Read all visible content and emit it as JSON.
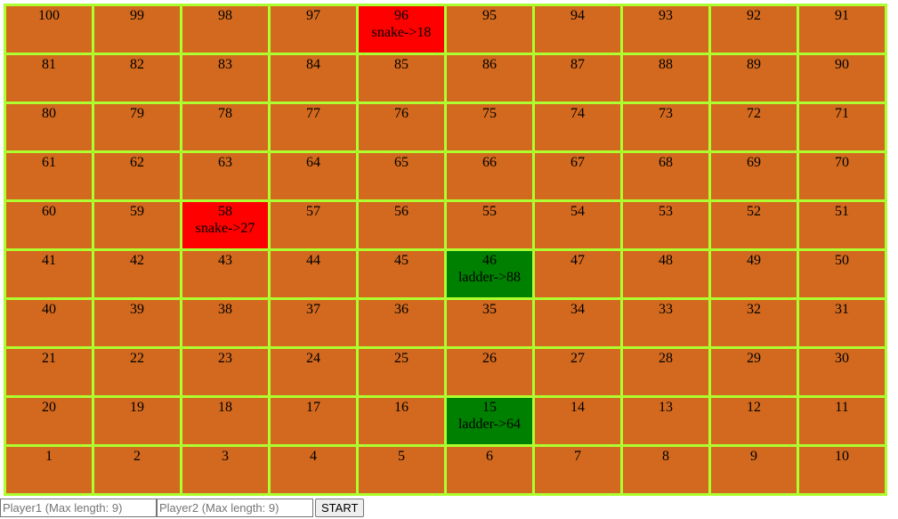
{
  "board": {
    "rows": [
      [
        100,
        99,
        98,
        97,
        96,
        95,
        94,
        93,
        92,
        91
      ],
      [
        81,
        82,
        83,
        84,
        85,
        86,
        87,
        88,
        89,
        90
      ],
      [
        80,
        79,
        78,
        77,
        76,
        75,
        74,
        73,
        72,
        71
      ],
      [
        61,
        62,
        63,
        64,
        65,
        66,
        67,
        68,
        69,
        70
      ],
      [
        60,
        59,
        58,
        57,
        56,
        55,
        54,
        53,
        52,
        51
      ],
      [
        41,
        42,
        43,
        44,
        45,
        46,
        47,
        48,
        49,
        50
      ],
      [
        40,
        39,
        38,
        37,
        36,
        35,
        34,
        33,
        32,
        31
      ],
      [
        21,
        22,
        23,
        24,
        25,
        26,
        27,
        28,
        29,
        30
      ],
      [
        20,
        19,
        18,
        17,
        16,
        15,
        14,
        13,
        12,
        11
      ],
      [
        1,
        2,
        3,
        4,
        5,
        6,
        7,
        8,
        9,
        10
      ]
    ],
    "specials": {
      "96": {
        "type": "snake",
        "label": "snake->18"
      },
      "58": {
        "type": "snake",
        "label": "snake->27"
      },
      "46": {
        "type": "ladder",
        "label": "ladder->88"
      },
      "15": {
        "type": "ladder",
        "label": "ladder->64"
      }
    },
    "colors": {
      "cell": "#d2691e",
      "grid": "#adff2f",
      "snake": "#ff0000",
      "ladder": "#008000"
    }
  },
  "controls": {
    "player1": {
      "value": "",
      "placeholder": "Player1 (Max length: 9)"
    },
    "player2": {
      "value": "",
      "placeholder": "Player2 (Max length: 9)"
    },
    "start_label": "START"
  }
}
